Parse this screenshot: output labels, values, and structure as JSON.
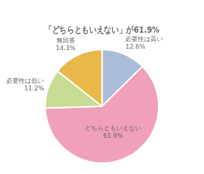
{
  "chart_data": {
    "type": "pie",
    "title": "「どちらともいえない」が61.9%",
    "categories": [
      "必要性は高い",
      "どちらともいえない",
      "必要性は低い",
      "無回答"
    ],
    "values": [
      12.6,
      61.9,
      11.2,
      14.3
    ],
    "value_labels": [
      "12.6%",
      "61.9%",
      "11.2%",
      "14.3%"
    ],
    "colors": [
      "#aabcd8",
      "#f0a0b8",
      "#c8dc96",
      "#e8b84b"
    ],
    "data_labels": true
  }
}
